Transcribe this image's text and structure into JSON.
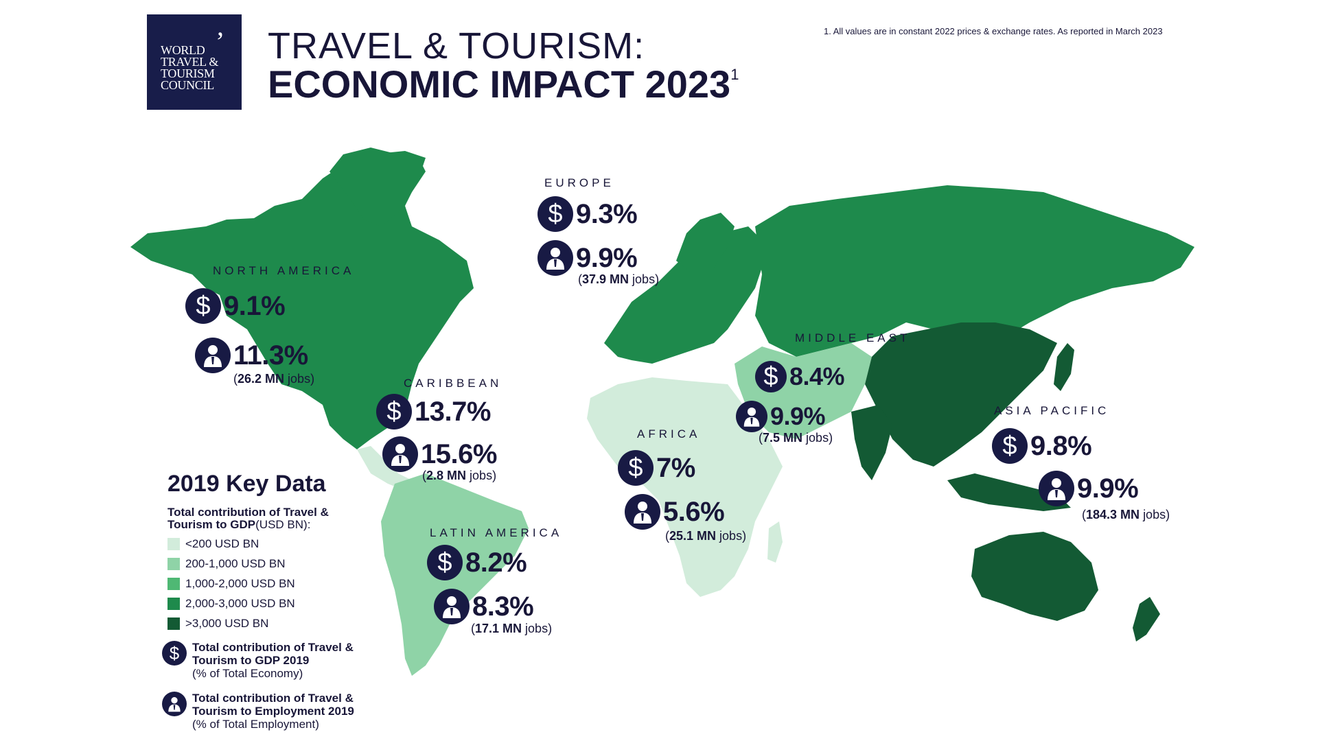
{
  "header": {
    "logo_lines": [
      "WORLD",
      "TRAVEL &",
      "TOURISM",
      "COUNCIL"
    ],
    "title_line1": "TRAVEL & TOURISM:",
    "title_line2": "ECONOMIC IMPACT 2023",
    "title_sup": "1",
    "footnote": "1. All values are in constant 2022 prices & exchange rates. As reported in March 2023"
  },
  "regions": [
    {
      "id": "north-america",
      "name": "NORTH AMERICA",
      "gdp": "9.1%",
      "employment": "11.3%",
      "jobs_num": "26.2 MN",
      "jobs_word": "jobs",
      "gdp_band": "2,000-3,000 USD BN"
    },
    {
      "id": "europe",
      "name": "EUROPE",
      "gdp": "9.3%",
      "employment": "9.9%",
      "jobs_num": "37.9 MN",
      "jobs_word": "jobs",
      "gdp_band": "2,000-3,000 USD BN"
    },
    {
      "id": "caribbean",
      "name": "CARIBBEAN",
      "gdp": "13.7%",
      "employment": "15.6%",
      "jobs_num": "2.8 MN",
      "jobs_word": "jobs",
      "gdp_band": "<200 USD BN"
    },
    {
      "id": "middle-east",
      "name": "MIDDLE EAST",
      "gdp": "8.4%",
      "employment": "9.9%",
      "jobs_num": "7.5 MN",
      "jobs_word": "jobs",
      "gdp_band": "200-1,000 USD BN"
    },
    {
      "id": "africa",
      "name": "AFRICA",
      "gdp": "7%",
      "employment": "5.6%",
      "jobs_num": "25.1 MN",
      "jobs_word": "jobs",
      "gdp_band": "<200 USD BN"
    },
    {
      "id": "asia-pacific",
      "name": "ASIA PACIFIC",
      "gdp": "9.8%",
      "employment": "9.9%",
      "jobs_num": "184.3 MN",
      "jobs_word": "jobs",
      "gdp_band": ">3,000 USD BN"
    },
    {
      "id": "latin-america",
      "name": "LATIN AMERICA",
      "gdp": "8.2%",
      "employment": "8.3%",
      "jobs_num": "17.1 MN",
      "jobs_word": "jobs",
      "gdp_band": "200-1,000 USD BN"
    }
  ],
  "legend": {
    "title": "2019 Key Data",
    "subtitle_bold": "Total contribution of Travel & Tourism to GDP",
    "subtitle_normal": "(USD BN):",
    "items": [
      {
        "label": "<200 USD BN",
        "color": "#d2ecdb"
      },
      {
        "label": "200-1,000 USD BN",
        "color": "#8fd3a7"
      },
      {
        "label": "1,000-2,000 USD BN",
        "color": "#4fb874"
      },
      {
        "label": "2,000-3,000 USD BN",
        "color": "#1e8a4c"
      },
      {
        "label": ">3,000 USD BN",
        "color": "#135a34"
      }
    ],
    "gdp_icon": "dollar-icon",
    "gdp_key_bold": "Total contribution of Travel & Tourism to GDP 2019",
    "gdp_key_normal": "(% of Total Economy)",
    "emp_icon": "person-icon",
    "emp_key_bold": "Total contribution of Travel & Tourism to Employment 2019",
    "emp_key_normal": "(% of Total Employment)"
  }
}
